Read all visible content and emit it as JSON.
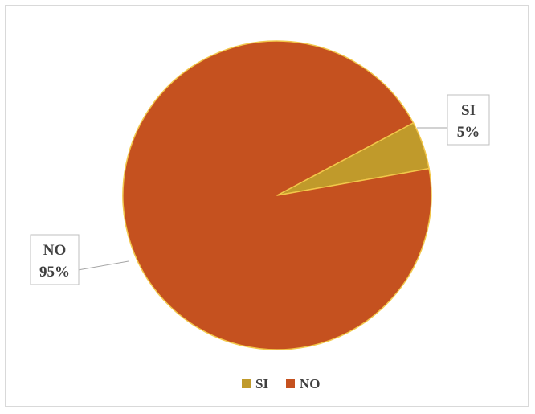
{
  "chart_data": {
    "type": "pie",
    "title": "",
    "slices": [
      {
        "label": "SI",
        "value": 5,
        "percent_label": "5%",
        "color": "#c09a2b"
      },
      {
        "label": "NO",
        "value": 95,
        "percent_label": "95%",
        "color": "#c5511f"
      }
    ],
    "legend": {
      "placement": "bottom",
      "entries": [
        "SI",
        "NO"
      ]
    }
  },
  "colors": {
    "slice_border": "#f2c74a",
    "leader_line": "#a6a6a6",
    "label_box_border": "#bfbfbf"
  }
}
